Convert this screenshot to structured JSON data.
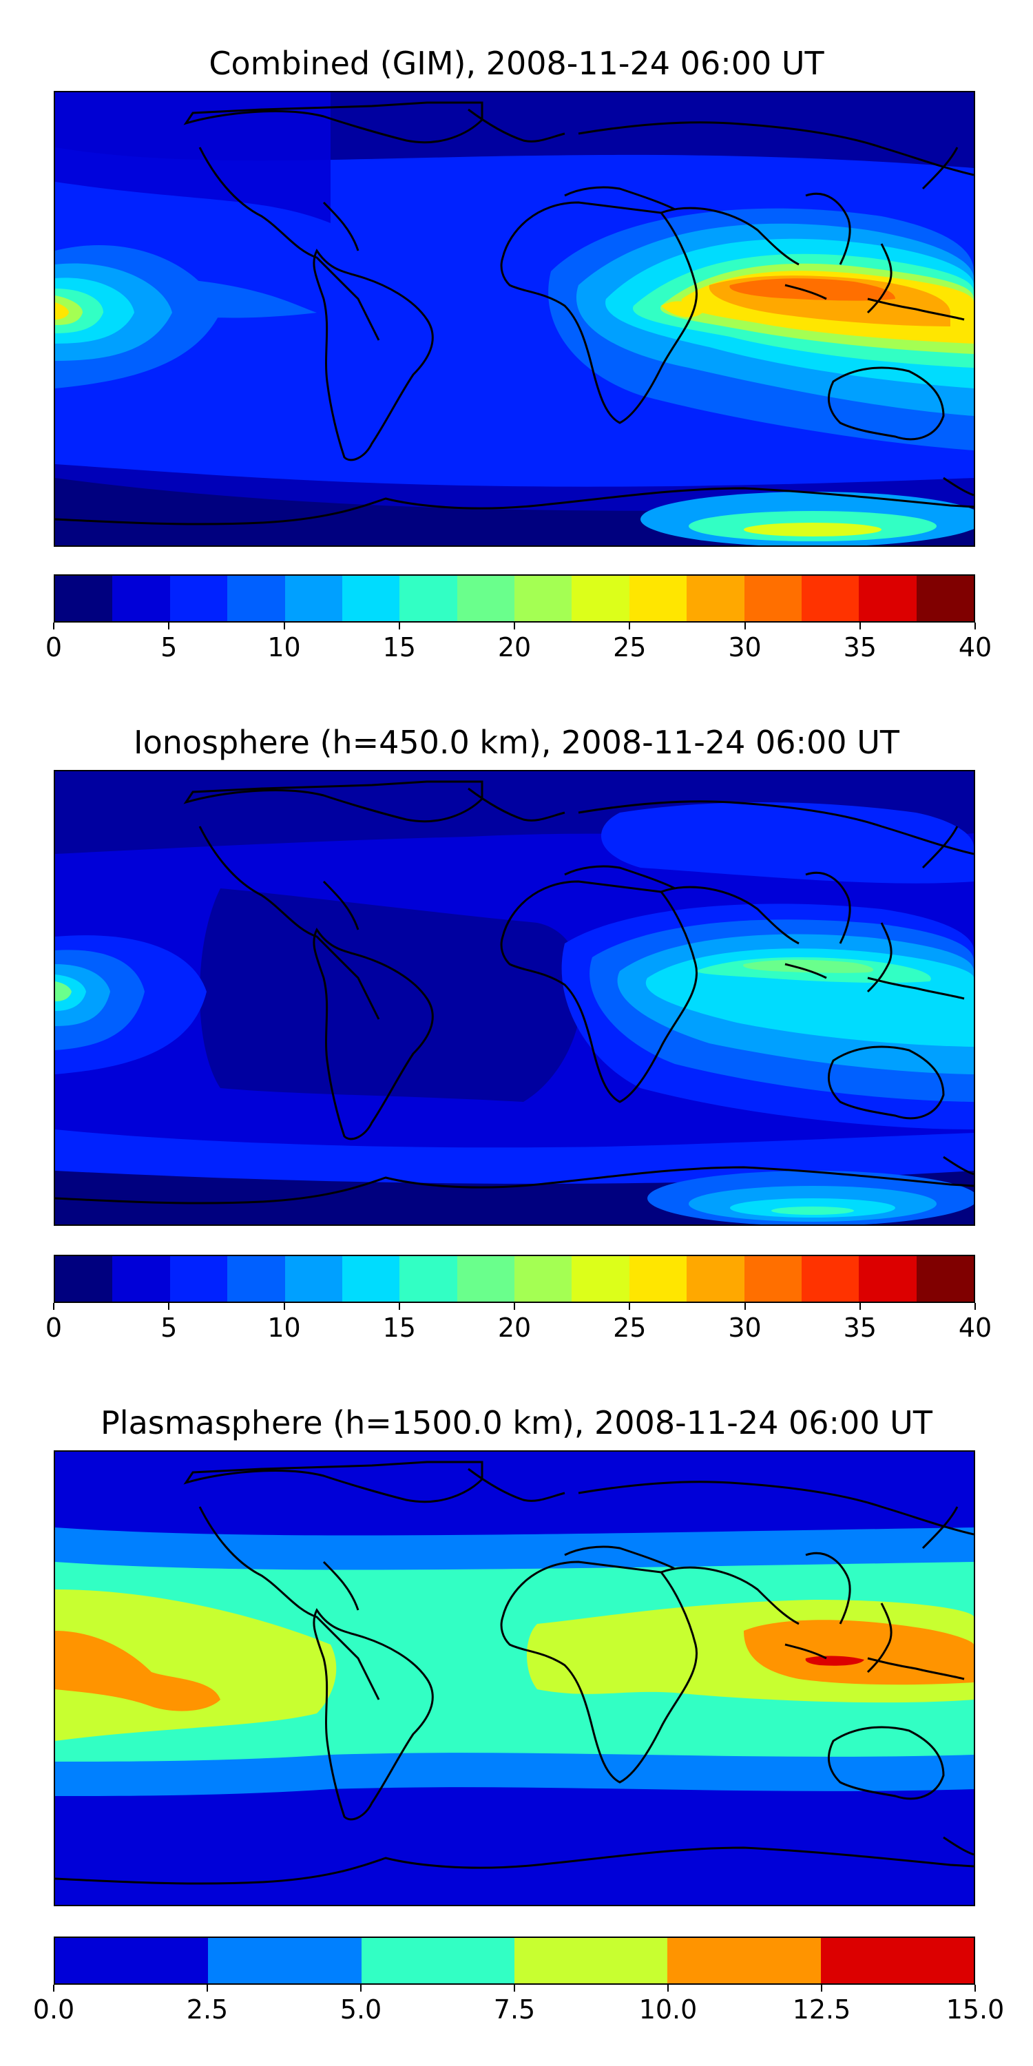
{
  "panels": [
    {
      "title": "Combined (GIM), 2008-11-24 06:00 UT",
      "colorbar_ticks": [
        "0",
        "5",
        "10",
        "15",
        "20",
        "25",
        "30",
        "35",
        "40"
      ],
      "colorbar_range": [
        0,
        40
      ],
      "colorbar_bins": 16,
      "colorbar_colors": [
        "#00007f",
        "#0000d8",
        "#0022ff",
        "#0060ff",
        "#00a0ff",
        "#00dcfe",
        "#32ffc4",
        "#6aff8c",
        "#a4ff53",
        "#dcff1a",
        "#ffe600",
        "#ffa800",
        "#ff6f00",
        "#ff3300",
        "#dc0000",
        "#800000"
      ],
      "blobs": [
        {
          "c": "#00a0ff",
          "level": 10
        },
        {
          "c": "#ffa800",
          "level": 30
        }
      ]
    },
    {
      "title": "Ionosphere  (h=450.0 km), 2008-11-24 06:00 UT",
      "colorbar_ticks": [
        "0",
        "5",
        "10",
        "15",
        "20",
        "25",
        "30",
        "35",
        "40"
      ],
      "colorbar_range": [
        0,
        40
      ],
      "colorbar_bins": 16,
      "colorbar_colors": [
        "#00007f",
        "#0000d8",
        "#0022ff",
        "#0060ff",
        "#00a0ff",
        "#00dcfe",
        "#32ffc4",
        "#6aff8c",
        "#a4ff53",
        "#dcff1a",
        "#ffe600",
        "#ffa800",
        "#ff6f00",
        "#ff3300",
        "#dc0000",
        "#800000"
      ]
    },
    {
      "title": "Plasmasphere (h=1500.0 km), 2008-11-24 06:00 UT",
      "colorbar_ticks": [
        "0.0",
        "2.5",
        "5.0",
        "7.5",
        "10.0",
        "12.5",
        "15.0"
      ],
      "colorbar_range": [
        0,
        15
      ],
      "colorbar_bins": 6,
      "colorbar_colors": [
        "#0000d8",
        "#0080ff",
        "#32ffc4",
        "#c8ff30",
        "#ff9400",
        "#dc0000"
      ]
    }
  ]
}
